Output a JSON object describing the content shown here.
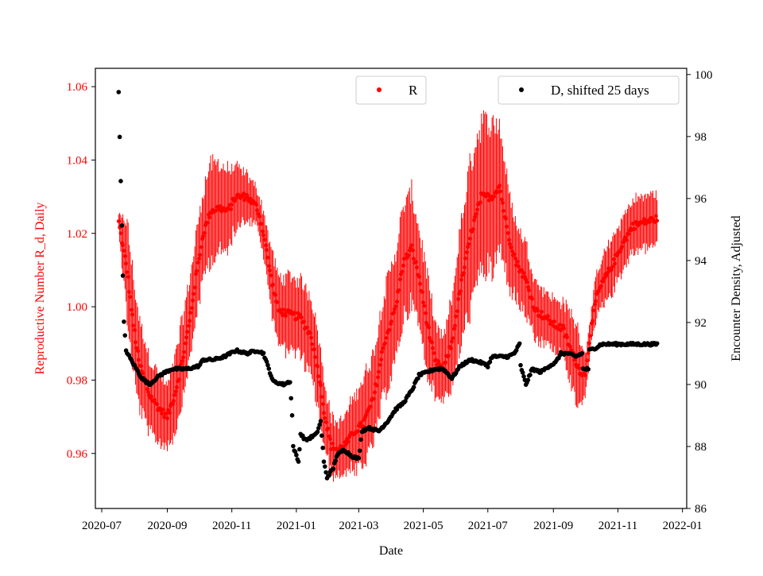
{
  "chart_data": {
    "type": "scatter",
    "xlabel": "Date",
    "ylabel_left": "Reproductive Number R_d, Daily",
    "ylabel_right": "Encounter Density, Adjusted",
    "left_axis_color": "#ff0000",
    "right_axis_color": "#000000",
    "xlim": [
      "2020-06-25",
      "2022-01-05"
    ],
    "ylim_left": [
      0.945,
      1.065
    ],
    "ylim_right": [
      86,
      100.2
    ],
    "x_ticks": [
      {
        "date": "2020-07-01",
        "label": "2020-07"
      },
      {
        "date": "2020-09-01",
        "label": "2020-09"
      },
      {
        "date": "2020-11-01",
        "label": "2020-11"
      },
      {
        "date": "2021-01-01",
        "label": "2021-01"
      },
      {
        "date": "2021-03-01",
        "label": "2021-03"
      },
      {
        "date": "2021-05-01",
        "label": "2021-05"
      },
      {
        "date": "2021-07-01",
        "label": "2021-07"
      },
      {
        "date": "2021-09-01",
        "label": "2021-09"
      },
      {
        "date": "2021-11-01",
        "label": "2021-11"
      },
      {
        "date": "2022-01-01",
        "label": "2022-01"
      }
    ],
    "y_ticks_left": [
      {
        "value": 0.96,
        "label": "0.96"
      },
      {
        "value": 0.98,
        "label": "0.98"
      },
      {
        "value": 1.0,
        "label": "1.00"
      },
      {
        "value": 1.02,
        "label": "1.02"
      },
      {
        "value": 1.04,
        "label": "1.04"
      },
      {
        "value": 1.06,
        "label": "1.06"
      }
    ],
    "y_ticks_right": [
      {
        "value": 86,
        "label": "86"
      },
      {
        "value": 88,
        "label": "88"
      },
      {
        "value": 90,
        "label": "90"
      },
      {
        "value": 92,
        "label": "92"
      },
      {
        "value": 94,
        "label": "94"
      },
      {
        "value": 96,
        "label": "96"
      },
      {
        "value": 98,
        "label": "98"
      },
      {
        "value": 100,
        "label": "100"
      }
    ],
    "legend": [
      {
        "label": "R",
        "color": "#ff0000",
        "position": "top-center"
      },
      {
        "label": "D, shifted 25 days",
        "color": "#000000",
        "position": "top-right"
      }
    ],
    "series": [
      {
        "name": "R",
        "axis": "left",
        "color": "#ff0000",
        "style": "points-with-errorbars",
        "start": "2020-07-17",
        "end": "2021-12-08",
        "anchors": [
          [
            "2020-07-17",
            1.023,
            0.002
          ],
          [
            "2020-07-20",
            1.018,
            0.006
          ],
          [
            "2020-07-25",
            1.01,
            0.013
          ],
          [
            "2020-07-30",
            0.997,
            0.013
          ],
          [
            "2020-08-05",
            0.985,
            0.012
          ],
          [
            "2020-08-15",
            0.976,
            0.01
          ],
          [
            "2020-08-25",
            0.972,
            0.009
          ],
          [
            "2020-09-01",
            0.97,
            0.008
          ],
          [
            "2020-09-08",
            0.976,
            0.01
          ],
          [
            "2020-09-15",
            0.985,
            0.011
          ],
          [
            "2020-09-22",
            0.996,
            0.011
          ],
          [
            "2020-09-28",
            1.008,
            0.011
          ],
          [
            "2020-10-05",
            1.02,
            0.012
          ],
          [
            "2020-10-12",
            1.026,
            0.013
          ],
          [
            "2020-10-20",
            1.027,
            0.012
          ],
          [
            "2020-10-28",
            1.026,
            0.011
          ],
          [
            "2020-11-05",
            1.03,
            0.008
          ],
          [
            "2020-11-15",
            1.03,
            0.006
          ],
          [
            "2020-11-25",
            1.027,
            0.005
          ],
          [
            "2020-12-01",
            1.02,
            0.006
          ],
          [
            "2020-12-08",
            1.008,
            0.008
          ],
          [
            "2020-12-15",
            0.999,
            0.009
          ],
          [
            "2020-12-25",
            0.998,
            0.01
          ],
          [
            "2021-01-05",
            0.997,
            0.01
          ],
          [
            "2021-01-15",
            0.992,
            0.011
          ],
          [
            "2021-01-22",
            0.982,
            0.01
          ],
          [
            "2021-01-28",
            0.97,
            0.009
          ],
          [
            "2021-02-03",
            0.962,
            0.008
          ],
          [
            "2021-02-10",
            0.961,
            0.007
          ],
          [
            "2021-02-18",
            0.963,
            0.008
          ],
          [
            "2021-02-25",
            0.966,
            0.01
          ],
          [
            "2021-03-05",
            0.968,
            0.012
          ],
          [
            "2021-03-15",
            0.975,
            0.012
          ],
          [
            "2021-03-25",
            0.99,
            0.014
          ],
          [
            "2021-04-05",
            1.0,
            0.015
          ],
          [
            "2021-04-12",
            1.012,
            0.015
          ],
          [
            "2021-04-20",
            1.016,
            0.015
          ],
          [
            "2021-04-27",
            1.008,
            0.013
          ],
          [
            "2021-05-05",
            0.995,
            0.013
          ],
          [
            "2021-05-12",
            0.985,
            0.01
          ],
          [
            "2021-05-20",
            0.983,
            0.008
          ],
          [
            "2021-05-28",
            0.99,
            0.012
          ],
          [
            "2021-06-05",
            1.005,
            0.016
          ],
          [
            "2021-06-15",
            1.02,
            0.02
          ],
          [
            "2021-06-25",
            1.03,
            0.02
          ],
          [
            "2021-07-05",
            1.03,
            0.02
          ],
          [
            "2021-07-12",
            1.033,
            0.017
          ],
          [
            "2021-07-20",
            1.02,
            0.013
          ],
          [
            "2021-07-28",
            1.012,
            0.01
          ],
          [
            "2021-08-05",
            1.008,
            0.01
          ],
          [
            "2021-08-15",
            0.999,
            0.008
          ],
          [
            "2021-08-25",
            0.997,
            0.007
          ],
          [
            "2021-09-02",
            0.995,
            0.007
          ],
          [
            "2021-09-10",
            0.994,
            0.007
          ],
          [
            "2021-09-18",
            0.988,
            0.01
          ],
          [
            "2021-09-25",
            0.983,
            0.01
          ],
          [
            "2021-10-01",
            0.981,
            0.006
          ],
          [
            "2021-10-06",
            0.993,
            0.004
          ],
          [
            "2021-10-12",
            1.003,
            0.006
          ],
          [
            "2021-10-20",
            1.008,
            0.007
          ],
          [
            "2021-10-28",
            1.012,
            0.007
          ],
          [
            "2021-11-05",
            1.017,
            0.007
          ],
          [
            "2021-11-15",
            1.022,
            0.007
          ],
          [
            "2021-11-25",
            1.023,
            0.007
          ],
          [
            "2021-12-08",
            1.024,
            0.007
          ]
        ]
      },
      {
        "name": "D, shifted 25 days",
        "axis": "right",
        "color": "#000000",
        "style": "points",
        "start": "2020-07-17",
        "end": "2021-12-08",
        "anchors": [
          [
            "2020-07-17",
            99.4
          ],
          [
            "2020-07-18",
            98.0
          ],
          [
            "2020-07-19",
            96.6
          ],
          [
            "2020-07-20",
            95.1
          ],
          [
            "2020-07-21",
            93.5
          ],
          [
            "2020-07-22",
            92.0
          ],
          [
            "2020-07-24",
            91.1
          ],
          [
            "2020-07-27",
            90.9
          ],
          [
            "2020-08-01",
            90.6
          ],
          [
            "2020-08-08",
            90.2
          ],
          [
            "2020-08-15",
            90.0
          ],
          [
            "2020-08-25",
            90.3
          ],
          [
            "2020-09-05",
            90.5
          ],
          [
            "2020-09-20",
            90.5
          ],
          [
            "2020-10-01",
            90.6
          ],
          [
            "2020-10-05",
            90.8
          ],
          [
            "2020-10-15",
            90.8
          ],
          [
            "2020-10-25",
            90.9
          ],
          [
            "2020-11-05",
            91.1
          ],
          [
            "2020-11-15",
            91.0
          ],
          [
            "2020-11-25",
            91.1
          ],
          [
            "2020-12-01",
            91.0
          ],
          [
            "2020-12-05",
            90.6
          ],
          [
            "2020-12-10",
            90.1
          ],
          [
            "2020-12-20",
            90.0
          ],
          [
            "2020-12-26",
            90.1
          ],
          [
            "2020-12-28",
            89.0
          ],
          [
            "2020-12-29",
            88.0
          ],
          [
            "2021-01-03",
            87.5
          ],
          [
            "2021-01-05",
            88.4
          ],
          [
            "2021-01-10",
            88.2
          ],
          [
            "2021-01-15",
            88.3
          ],
          [
            "2021-01-20",
            88.4
          ],
          [
            "2021-01-24",
            88.8
          ],
          [
            "2021-01-27",
            87.5
          ],
          [
            "2021-01-30",
            87.0
          ],
          [
            "2021-02-05",
            87.3
          ],
          [
            "2021-02-08",
            87.7
          ],
          [
            "2021-02-15",
            87.9
          ],
          [
            "2021-02-22",
            87.7
          ],
          [
            "2021-03-01",
            87.6
          ],
          [
            "2021-03-04",
            88.5
          ],
          [
            "2021-03-10",
            88.6
          ],
          [
            "2021-03-20",
            88.5
          ],
          [
            "2021-03-28",
            88.8
          ],
          [
            "2021-04-05",
            89.2
          ],
          [
            "2021-04-12",
            89.4
          ],
          [
            "2021-04-20",
            89.8
          ],
          [
            "2021-04-27",
            90.3
          ],
          [
            "2021-05-05",
            90.4
          ],
          [
            "2021-05-12",
            90.5
          ],
          [
            "2021-05-20",
            90.5
          ],
          [
            "2021-05-28",
            90.2
          ],
          [
            "2021-06-05",
            90.6
          ],
          [
            "2021-06-15",
            90.8
          ],
          [
            "2021-06-25",
            90.7
          ],
          [
            "2021-07-01",
            90.6
          ],
          [
            "2021-07-05",
            90.9
          ],
          [
            "2021-07-12",
            90.9
          ],
          [
            "2021-07-20",
            90.9
          ],
          [
            "2021-07-26",
            91.0
          ],
          [
            "2021-07-31",
            91.3
          ],
          [
            "2021-08-01",
            90.6
          ],
          [
            "2021-08-06",
            90.0
          ],
          [
            "2021-08-12",
            90.5
          ],
          [
            "2021-08-20",
            90.4
          ],
          [
            "2021-08-28",
            90.6
          ],
          [
            "2021-09-03",
            90.7
          ],
          [
            "2021-09-08",
            91.0
          ],
          [
            "2021-09-15",
            91.0
          ],
          [
            "2021-09-22",
            90.9
          ],
          [
            "2021-09-28",
            91.0
          ],
          [
            "2021-09-29",
            90.5
          ],
          [
            "2021-10-04",
            90.5
          ],
          [
            "2021-10-05",
            91.1
          ],
          [
            "2021-10-12",
            91.2
          ],
          [
            "2021-10-16",
            91.3
          ],
          [
            "2021-12-08",
            91.3
          ]
        ]
      }
    ]
  }
}
